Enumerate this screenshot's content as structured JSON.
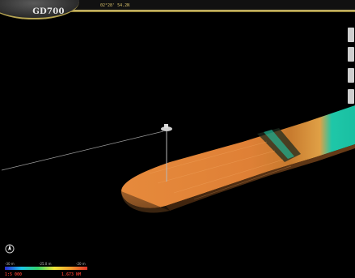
{
  "app": {
    "logo": "GD700"
  },
  "header": {
    "coordinate_readout": "02°28' 54.2N"
  },
  "legend": {
    "min_label": "-30 m",
    "mid_label": "-25.0 m",
    "max_label": "-20 m",
    "scale_label": "1:5 000",
    "distance_label": "1.673 NM"
  },
  "icons": {
    "compass": "compass-icon"
  },
  "colors": {
    "accent_gold": "#d2bd62",
    "terrain_main": "#e8893a",
    "terrain_deep": "#1ec9a6",
    "scale_text": "#e23b2e"
  }
}
